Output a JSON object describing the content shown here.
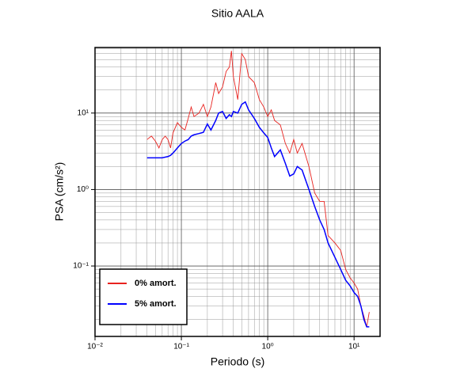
{
  "chart_data": {
    "type": "line",
    "title": "Sitio AALA",
    "x_label": "Periodo (s)",
    "y_label": "PSA (cm/s²)",
    "x": [
      0.04,
      0.045,
      0.05,
      0.055,
      0.06,
      0.065,
      0.07,
      0.075,
      0.08,
      0.09,
      0.1,
      0.11,
      0.12,
      0.13,
      0.14,
      0.16,
      0.18,
      0.2,
      0.22,
      0.25,
      0.27,
      0.3,
      0.33,
      0.36,
      0.38,
      0.4,
      0.45,
      0.5,
      0.55,
      0.6,
      0.7,
      0.8,
      0.9,
      1.0,
      1.1,
      1.2,
      1.4,
      1.6,
      1.8,
      2.0,
      2.2,
      2.5,
      3.0,
      3.5,
      4,
      4.5,
      5,
      6,
      7,
      8,
      9,
      10,
      11,
      12,
      13,
      14,
      15
    ],
    "series": [
      {
        "name": "0% amort.",
        "color": "#e8231f",
        "values": [
          4.5,
          5.0,
          4.3,
          3.5,
          4.5,
          5.0,
          4.5,
          3.5,
          5.5,
          7.5,
          6.5,
          6.0,
          8.5,
          12,
          9,
          10,
          13,
          9,
          12,
          25,
          18,
          22,
          35,
          40,
          65,
          30,
          15,
          60,
          50,
          30,
          25,
          15,
          12,
          9,
          11,
          8,
          7,
          4,
          3,
          4.5,
          3,
          4,
          2,
          0.9,
          0.7,
          0.7,
          0.25,
          0.2,
          0.16,
          0.09,
          0.07,
          0.06,
          0.05,
          0.03,
          0.022,
          0.016,
          0.025
        ]
      },
      {
        "name": "5% amort.",
        "color": "#0000ff",
        "values": [
          2.6,
          2.6,
          2.6,
          2.6,
          2.6,
          2.65,
          2.7,
          2.8,
          3.0,
          3.5,
          4.0,
          4.3,
          4.5,
          5.0,
          5.2,
          5.4,
          5.6,
          7.2,
          6.0,
          8.0,
          10,
          10.5,
          8.5,
          9.5,
          9.0,
          10.5,
          10,
          13,
          14,
          11,
          8.5,
          6.5,
          5.5,
          4.8,
          3.5,
          2.7,
          3.3,
          2.2,
          1.5,
          1.6,
          2.0,
          1.8,
          1.0,
          0.6,
          0.4,
          0.3,
          0.2,
          0.13,
          0.09,
          0.065,
          0.055,
          0.045,
          0.04,
          0.03,
          0.02,
          0.016,
          0.016
        ]
      }
    ],
    "xlim": [
      0.01,
      20
    ],
    "ylim": [
      0.012,
      72
    ],
    "log_x": true,
    "log_y": true,
    "xticks": [
      {
        "value": 0.01,
        "label": "10⁻²"
      },
      {
        "value": 0.1,
        "label": "10⁻¹"
      },
      {
        "value": 1,
        "label": "10⁰"
      },
      {
        "value": 10,
        "label": "10¹"
      }
    ],
    "yticks": [
      {
        "value": 0.1,
        "label": "10⁻¹"
      },
      {
        "value": 1,
        "label": "10⁰"
      },
      {
        "value": 10,
        "label": "10¹"
      }
    ],
    "grid": true,
    "legend": "lower left"
  }
}
